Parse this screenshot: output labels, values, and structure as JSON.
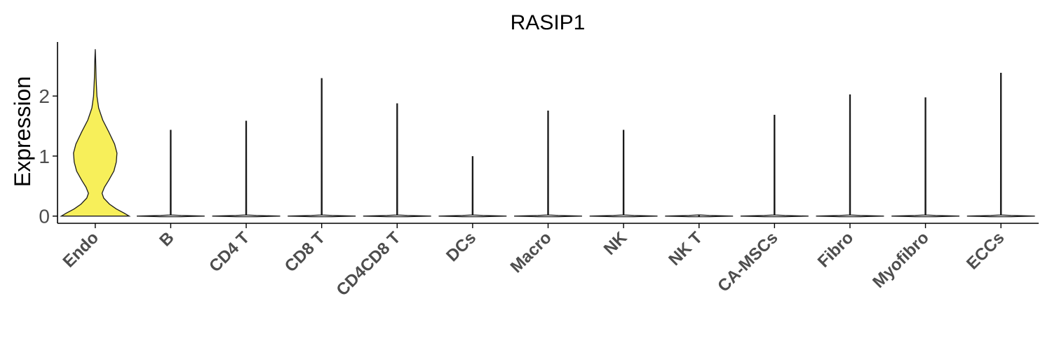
{
  "chart_data": {
    "type": "violin",
    "title": "RASIP1",
    "ylabel": "Expression",
    "xlabel": "",
    "ylim": [
      -0.12,
      2.9
    ],
    "yticks": [
      0,
      1,
      2
    ],
    "categories": [
      "Endo",
      "B",
      "CD4 T",
      "CD8 T",
      "CD4CD8 T",
      "DCs",
      "Macro",
      "NK",
      "NK T",
      "CA-MSCs",
      "Fibro",
      "Myofibro",
      "ECCs"
    ],
    "max_values": [
      2.78,
      1.43,
      1.58,
      2.29,
      1.87,
      0.99,
      1.75,
      1.43,
      0.0,
      1.68,
      2.02,
      1.97,
      2.38
    ],
    "fill_colors": [
      "#F7EF5A",
      "#FFFFFF",
      "#FFFFFF",
      "#FFFFFF",
      "#FFFFFF",
      "#FFFFFF",
      "#FFFFFF",
      "#FFFFFF",
      "#FFFFFF",
      "#FFFFFF",
      "#FFFFFF",
      "#FFFFFF",
      "#FFFFFF"
    ],
    "endo_density_profile": [
      [
        0.0,
        1.0
      ],
      [
        0.05,
        0.85
      ],
      [
        0.12,
        0.62
      ],
      [
        0.2,
        0.42
      ],
      [
        0.3,
        0.25
      ],
      [
        0.38,
        0.2
      ],
      [
        0.48,
        0.27
      ],
      [
        0.6,
        0.4
      ],
      [
        0.75,
        0.55
      ],
      [
        0.9,
        0.62
      ],
      [
        1.05,
        0.64
      ],
      [
        1.2,
        0.57
      ],
      [
        1.4,
        0.4
      ],
      [
        1.6,
        0.22
      ],
      [
        1.8,
        0.1
      ],
      [
        2.0,
        0.05
      ],
      [
        2.3,
        0.025
      ],
      [
        2.6,
        0.012
      ],
      [
        2.78,
        0.0
      ]
    ],
    "grid": false,
    "legend": "none"
  }
}
